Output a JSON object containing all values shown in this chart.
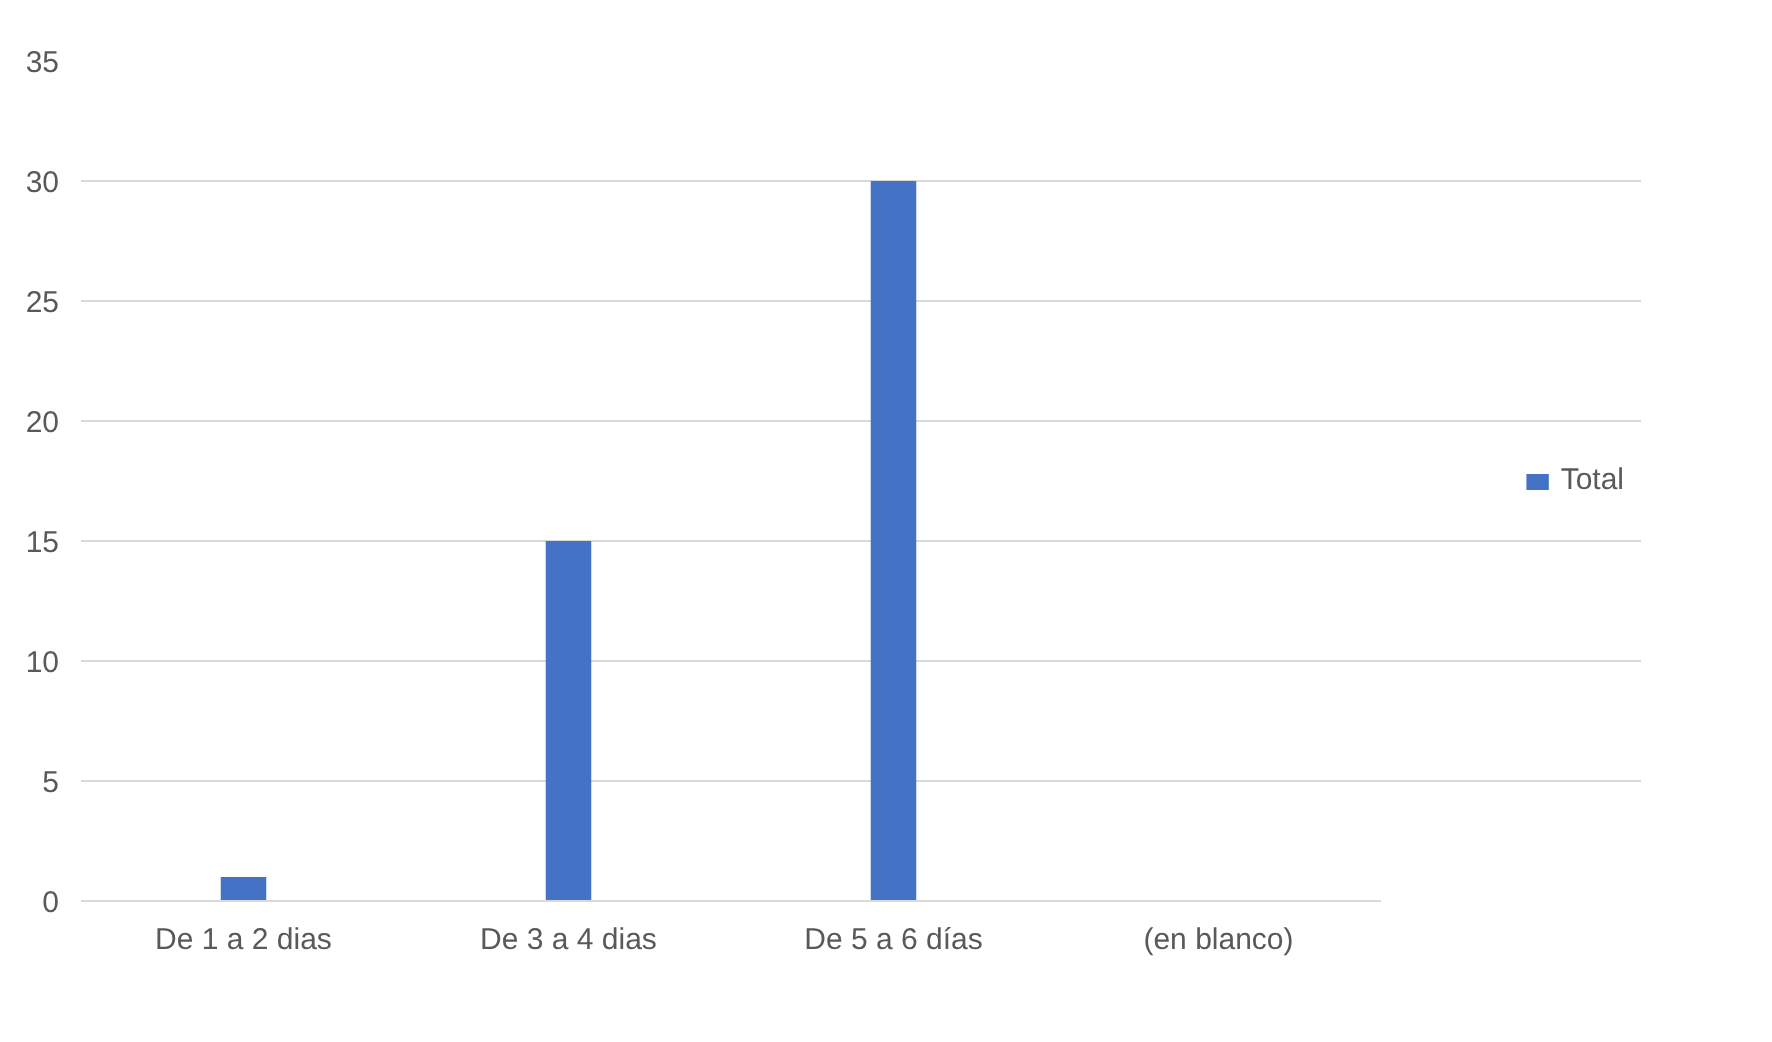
{
  "chart_data": {
    "type": "bar",
    "categories": [
      "De 1 a 2 dias",
      "De 3 a 4 dias",
      "De 5 a 6 días",
      "(en blanco)"
    ],
    "series": [
      {
        "name": "Total",
        "color": "#4472c4",
        "values": [
          1,
          15,
          30,
          null
        ]
      }
    ],
    "ylim": [
      0,
      35
    ],
    "yticks": [
      0,
      5,
      10,
      15,
      20,
      25,
      30,
      35
    ],
    "grid": "y",
    "legend": "right"
  }
}
